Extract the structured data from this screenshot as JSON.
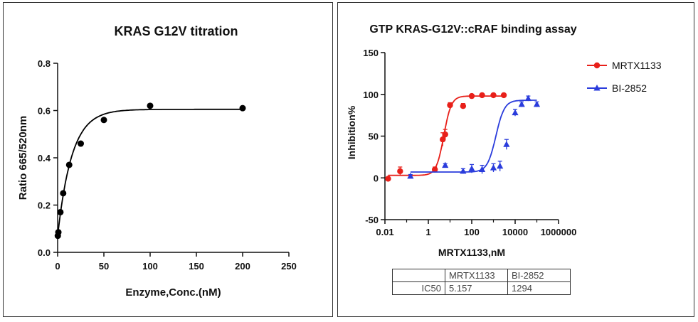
{
  "chart_data": [
    {
      "type": "scatter",
      "title": "KRAS G12V titration",
      "xlabel": "Enzyme,Conc.(nM)",
      "ylabel": "Ratio 665/520nm",
      "xlim": [
        0,
        250
      ],
      "ylim": [
        0,
        0.8
      ],
      "xticks": [
        0,
        50,
        100,
        150,
        200,
        250
      ],
      "yticks": [
        0.0,
        0.2,
        0.4,
        0.6,
        0.8
      ],
      "ytick_labels": [
        "0.0",
        "0.2",
        "0.4",
        "0.6",
        "0.8"
      ],
      "series": [
        {
          "x": [
            0.2,
            0.8,
            3,
            6,
            12.5,
            25,
            50,
            100,
            200
          ],
          "y": [
            0.07,
            0.085,
            0.17,
            0.25,
            0.37,
            0.46,
            0.56,
            0.62,
            0.61
          ],
          "fit": "one-phase-association",
          "color": "#000000"
        }
      ]
    },
    {
      "type": "scatter",
      "title": "GTP KRAS-G12V::cRAF binding assay",
      "xlabel": "MRTX1133,nM",
      "ylabel": "Inhibition%",
      "xscale": "log",
      "xlim": [
        0.01,
        1000000
      ],
      "ylim": [
        -50,
        150
      ],
      "xticks": [
        0.01,
        1,
        100,
        10000,
        1000000
      ],
      "xtick_labels": [
        "0.01",
        "1",
        "100",
        "10000",
        "1000000"
      ],
      "yticks": [
        -50,
        0,
        50,
        100,
        150
      ],
      "ytick_labels": [
        "-50",
        "0",
        "50",
        "100",
        "150"
      ],
      "legend_position": "right",
      "series": [
        {
          "name": "MRTX1133",
          "color": "#e8201a",
          "marker": "circle",
          "x": [
            0.014,
            0.05,
            2,
            4.6,
            6,
            10,
            40,
            100,
            300,
            1000,
            3000
          ],
          "y": [
            -1,
            8,
            10,
            46,
            52,
            87,
            86,
            98,
            99,
            99,
            99
          ],
          "err": [
            2,
            5,
            3,
            8,
            6,
            3,
            3,
            2,
            2,
            2,
            2
          ],
          "ic50": 5.157
        },
        {
          "name": "BI-2852",
          "color": "#2a3cdc",
          "marker": "triangle",
          "x": [
            0.15,
            6,
            40,
            100,
            300,
            1000,
            2000,
            4000,
            10000,
            20000,
            40000,
            100000
          ],
          "y": [
            2,
            15,
            8,
            11,
            10,
            12,
            14,
            40,
            78,
            88,
            95,
            88
          ],
          "err": [
            2,
            2,
            3,
            5,
            5,
            5,
            6,
            6,
            4,
            3,
            3,
            3
          ],
          "ic50": 1294
        }
      ]
    }
  ],
  "ic50_table": {
    "header": [
      "",
      "MRTX1133",
      "BI-2852"
    ],
    "rows": [
      [
        "IC50",
        "5.157",
        "1294"
      ]
    ]
  }
}
